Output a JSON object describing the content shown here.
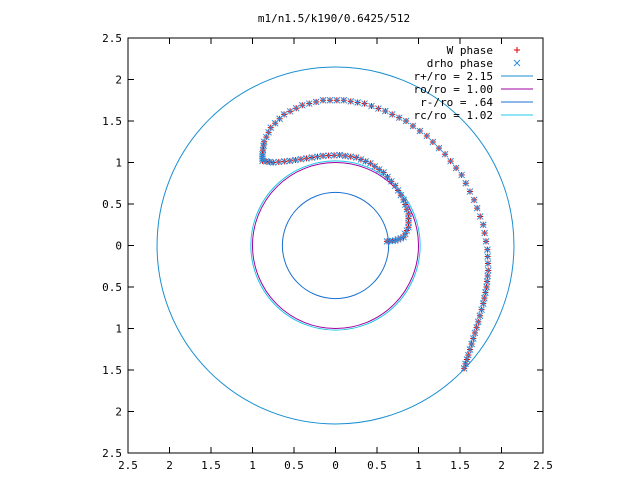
{
  "chart_data": {
    "type": "scatter",
    "title": "m1/n1.5/k190/0.6425/512",
    "xlim": [
      -2.5,
      2.5
    ],
    "ylim": [
      -2.5,
      2.5
    ],
    "xticks": [
      -2.5,
      -2,
      -1.5,
      -1,
      -0.5,
      0,
      0.5,
      1,
      1.5,
      2,
      2.5
    ],
    "yticks": [
      -2.5,
      -2,
      -1.5,
      -1,
      -0.5,
      0,
      0.5,
      1,
      1.5,
      2,
      2.5
    ],
    "xtick_labels": [
      "2.5",
      "2",
      "1.5",
      "1",
      "0.5",
      "0",
      "0.5",
      "1",
      "1.5",
      "2",
      "2.5"
    ],
    "ytick_labels": [
      "2.5",
      "2",
      "1.5",
      "1",
      "0.5",
      "0",
      "0.5",
      "1",
      "1.5",
      "2",
      "2.5"
    ],
    "grid": false,
    "legend_position": "top-right",
    "series": [
      {
        "name": "W phase",
        "kind": "points",
        "marker": "+",
        "color": "#e00000",
        "points": [
          [
            0.62,
            0.05
          ],
          [
            0.72,
            0.06
          ],
          [
            0.82,
            0.1
          ],
          [
            0.88,
            0.22
          ],
          [
            0.88,
            0.38
          ],
          [
            0.82,
            0.55
          ],
          [
            0.72,
            0.72
          ],
          [
            0.58,
            0.88
          ],
          [
            0.42,
            0.99
          ],
          [
            0.25,
            1.06
          ],
          [
            0.05,
            1.09
          ],
          [
            -0.15,
            1.08
          ],
          [
            -0.35,
            1.05
          ],
          [
            -0.55,
            1.02
          ],
          [
            -0.75,
            1.0
          ],
          [
            -0.88,
            1.02
          ],
          [
            -0.88,
            1.1
          ],
          [
            -0.86,
            1.25
          ],
          [
            -0.78,
            1.42
          ],
          [
            -0.62,
            1.58
          ],
          [
            -0.4,
            1.69
          ],
          [
            -0.15,
            1.75
          ],
          [
            0.1,
            1.75
          ],
          [
            0.35,
            1.71
          ],
          [
            0.6,
            1.62
          ],
          [
            0.85,
            1.5
          ],
          [
            1.1,
            1.32
          ],
          [
            1.32,
            1.1
          ],
          [
            1.52,
            0.85
          ],
          [
            1.67,
            0.55
          ],
          [
            1.78,
            0.25
          ],
          [
            1.83,
            -0.05
          ],
          [
            1.84,
            -0.3
          ],
          [
            1.82,
            -0.5
          ],
          [
            1.78,
            -0.7
          ],
          [
            1.72,
            -0.92
          ],
          [
            1.66,
            -1.12
          ],
          [
            1.6,
            -1.32
          ],
          [
            1.55,
            -1.48
          ]
        ]
      },
      {
        "name": "drho phase",
        "kind": "points",
        "marker": "x",
        "color": "#2c8fe0",
        "points": [
          [
            0.62,
            0.05
          ],
          [
            0.72,
            0.06
          ],
          [
            0.82,
            0.1
          ],
          [
            0.88,
            0.22
          ],
          [
            0.88,
            0.38
          ],
          [
            0.82,
            0.55
          ],
          [
            0.72,
            0.72
          ],
          [
            0.58,
            0.88
          ],
          [
            0.42,
            0.99
          ],
          [
            0.25,
            1.06
          ],
          [
            0.05,
            1.09
          ],
          [
            -0.15,
            1.08
          ],
          [
            -0.35,
            1.05
          ],
          [
            -0.55,
            1.02
          ],
          [
            -0.75,
            1.0
          ],
          [
            -0.88,
            1.02
          ],
          [
            -0.88,
            1.1
          ],
          [
            -0.86,
            1.25
          ],
          [
            -0.78,
            1.42
          ],
          [
            -0.62,
            1.58
          ],
          [
            -0.4,
            1.69
          ],
          [
            -0.15,
            1.75
          ],
          [
            0.1,
            1.75
          ],
          [
            0.35,
            1.71
          ],
          [
            0.6,
            1.62
          ],
          [
            0.85,
            1.5
          ],
          [
            1.1,
            1.32
          ],
          [
            1.32,
            1.1
          ],
          [
            1.52,
            0.85
          ],
          [
            1.67,
            0.55
          ],
          [
            1.78,
            0.25
          ],
          [
            1.83,
            -0.05
          ],
          [
            1.84,
            -0.3
          ],
          [
            1.82,
            -0.5
          ],
          [
            1.78,
            -0.7
          ],
          [
            1.72,
            -0.92
          ],
          [
            1.66,
            -1.12
          ],
          [
            1.6,
            -1.32
          ],
          [
            1.55,
            -1.48
          ]
        ]
      },
      {
        "name": "r+/ro = 2.15",
        "kind": "circle",
        "radius": 2.15,
        "color": "#1a8fd0"
      },
      {
        "name": "ro/ro = 1.00",
        "kind": "circle",
        "radius": 1.0,
        "color": "#a000a0"
      },
      {
        "name": "r-/ro = .64",
        "kind": "circle",
        "radius": 0.64,
        "color": "#1a6fd0"
      },
      {
        "name": "rc/ro = 1.02",
        "kind": "circle",
        "radius": 1.02,
        "color": "#20c8e8"
      }
    ]
  }
}
